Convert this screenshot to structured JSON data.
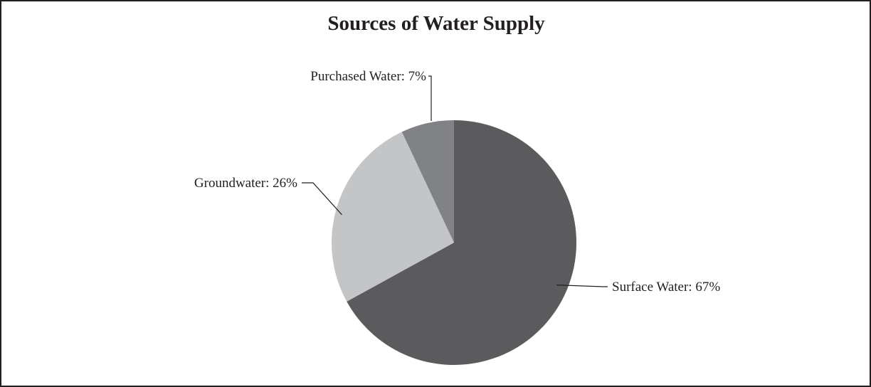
{
  "chart_data": {
    "type": "pie",
    "title": "Sources of Water Supply",
    "categories": [
      "Surface Water",
      "Groundwater",
      "Purchased Water"
    ],
    "values": [
      67,
      26,
      7
    ],
    "labels": [
      "Surface Water: 67%",
      "Groundwater: 26%",
      "Purchased Water: 7%"
    ],
    "colors": [
      "#5b5b5d",
      "#c4c5c7",
      "#818285"
    ],
    "start": "12 o'clock",
    "direction": "clockwise",
    "legend": "none"
  }
}
